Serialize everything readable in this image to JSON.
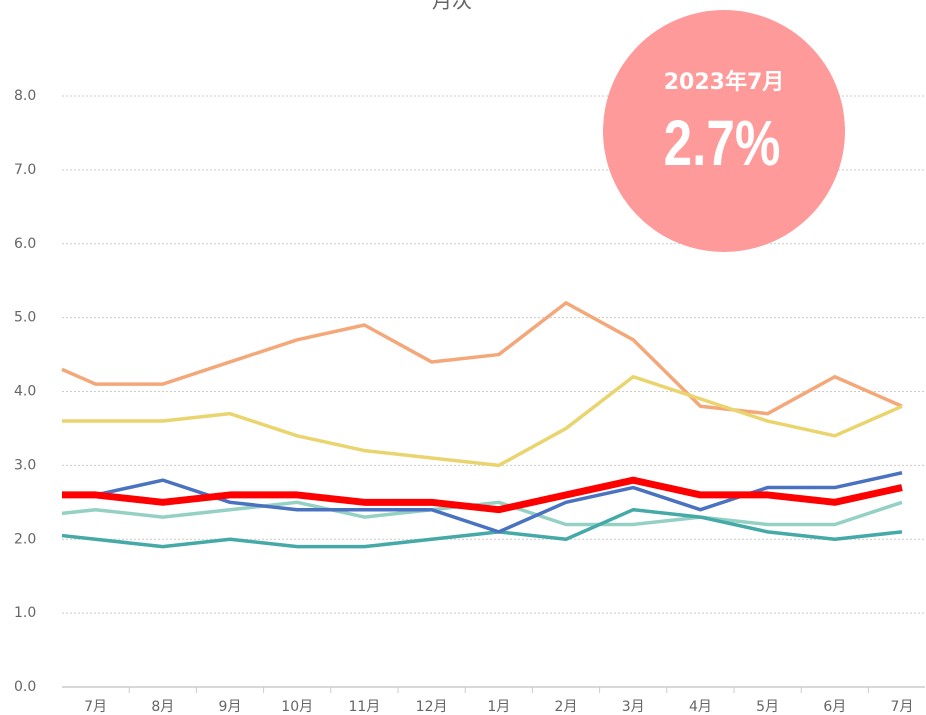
{
  "chart_data": {
    "type": "line",
    "title": "月次",
    "categories": [
      null,
      "7月",
      "8月",
      "9月",
      "10月",
      "11月",
      "12月",
      "1月",
      "2月",
      "3月",
      "4月",
      "5月",
      "6月",
      "7月"
    ],
    "series": [
      {
        "color": "#f4a87a",
        "width": 3.5,
        "values": [
          4.3,
          4.1,
          4.1,
          4.4,
          4.7,
          4.9,
          4.4,
          4.5,
          5.2,
          4.7,
          3.8,
          3.7,
          4.2,
          3.8
        ]
      },
      {
        "color": "#ead46e",
        "width": 3.5,
        "values": [
          3.6,
          3.6,
          3.6,
          3.7,
          3.4,
          3.2,
          3.1,
          3.0,
          3.5,
          4.2,
          3.9,
          3.6,
          3.4,
          3.8
        ]
      },
      {
        "color": "#94d1c4",
        "width": 3.5,
        "values": [
          2.35,
          2.4,
          2.3,
          2.4,
          2.5,
          2.3,
          2.4,
          2.5,
          2.2,
          2.2,
          2.3,
          2.2,
          2.2,
          2.5
        ]
      },
      {
        "color": "#45a9a8",
        "width": 3.5,
        "values": [
          2.05,
          2.0,
          1.9,
          2.0,
          1.9,
          1.9,
          2.0,
          2.1,
          2.0,
          2.4,
          2.3,
          2.1,
          2.0,
          2.1
        ]
      },
      {
        "color": "#4a72c0",
        "width": 3.5,
        "values": [
          2.6,
          2.6,
          2.8,
          2.5,
          2.4,
          2.4,
          2.4,
          2.1,
          2.5,
          2.7,
          2.4,
          2.7,
          2.7,
          2.9
        ]
      },
      {
        "color": "#ff0000",
        "width": 7,
        "values": [
          2.6,
          2.6,
          2.5,
          2.6,
          2.6,
          2.5,
          2.5,
          2.4,
          2.6,
          2.8,
          2.6,
          2.6,
          2.5,
          2.7
        ]
      }
    ],
    "ylim": [
      0,
      8
    ],
    "yticks": [
      {
        "value": 0,
        "label": "0.0"
      },
      {
        "value": 1,
        "label": "1.0"
      },
      {
        "value": 2,
        "label": "2.0"
      },
      {
        "value": 3,
        "label": "3.0"
      },
      {
        "value": 4,
        "label": "4.0"
      },
      {
        "value": 5,
        "label": "5.0"
      },
      {
        "value": 6,
        "label": "6.0"
      },
      {
        "value": 7,
        "label": "7.0"
      },
      {
        "value": 8,
        "label": "8.0"
      }
    ],
    "grid": true,
    "annotation": {
      "label": "2023年7月",
      "text": "2.7%",
      "color": "#ff9a9a"
    }
  }
}
